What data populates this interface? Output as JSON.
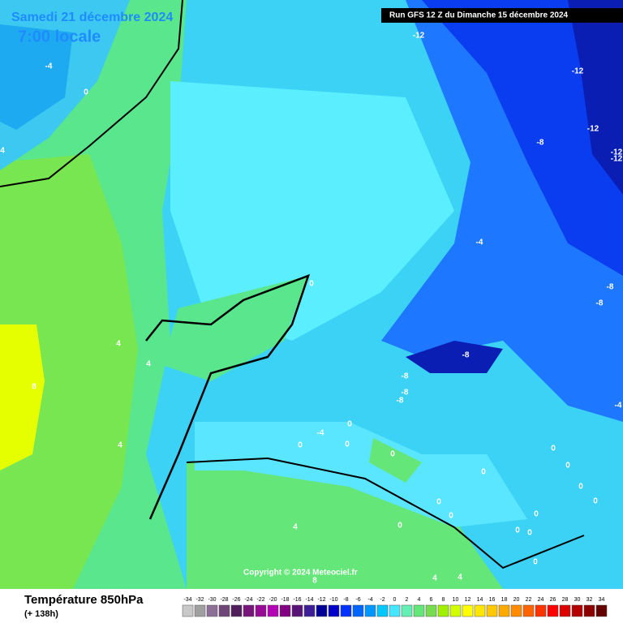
{
  "header": {
    "date": "Samedi 21 décembre 2024",
    "time": "7:00 locale",
    "run": "Run GFS 12 Z du Dimanche 15 décembre 2024",
    "copyright": "Copyright © 2024 Meteociel.fr"
  },
  "footer": {
    "title": "Température 850hPa",
    "subtitle": "(+ 138h)"
  },
  "contour_labels": [
    "-4",
    "0",
    "4",
    "-12",
    "-12",
    "-12",
    "-8",
    "-12",
    "-12",
    "-4",
    "0",
    "-8",
    "-8",
    "4",
    "4",
    "8",
    "-8",
    "-8",
    "-8",
    "-8",
    "-4",
    "0",
    "-4",
    "0",
    "0",
    "0",
    "4",
    "0",
    "0",
    "0",
    "0",
    "0",
    "0",
    "0",
    "0",
    "0",
    "0",
    "0",
    "0",
    "4",
    "4",
    "4",
    "8"
  ],
  "scale": {
    "labels": [
      "-34",
      "-32",
      "-30",
      "-28",
      "-26",
      "-24",
      "-22",
      "-20",
      "-18",
      "-16",
      "-14",
      "-12",
      "-10",
      "-8",
      "-6",
      "-4",
      "-2",
      "0",
      "2",
      "4",
      "6",
      "8",
      "10",
      "12",
      "14",
      "16",
      "18",
      "20",
      "22",
      "24",
      "26",
      "28",
      "30",
      "32",
      "34"
    ],
    "colors": [
      "#c8c8c8",
      "#a0a0a0",
      "#8c6e96",
      "#6e4678",
      "#501e5a",
      "#78147a",
      "#960a96",
      "#b400b4",
      "#820082",
      "#5a1478",
      "#3c1e96",
      "#000096",
      "#0000c8",
      "#0032ff",
      "#0064ff",
      "#0096ff",
      "#00c8ff",
      "#46e6ff",
      "#64f0b4",
      "#64e678",
      "#78dc50",
      "#a0f000",
      "#d2ff00",
      "#ffff00",
      "#ffe600",
      "#ffc800",
      "#ffaa00",
      "#ff8c00",
      "#ff6400",
      "#ff3200",
      "#ff0000",
      "#dc0000",
      "#b40000",
      "#8c0000",
      "#640000"
    ]
  }
}
